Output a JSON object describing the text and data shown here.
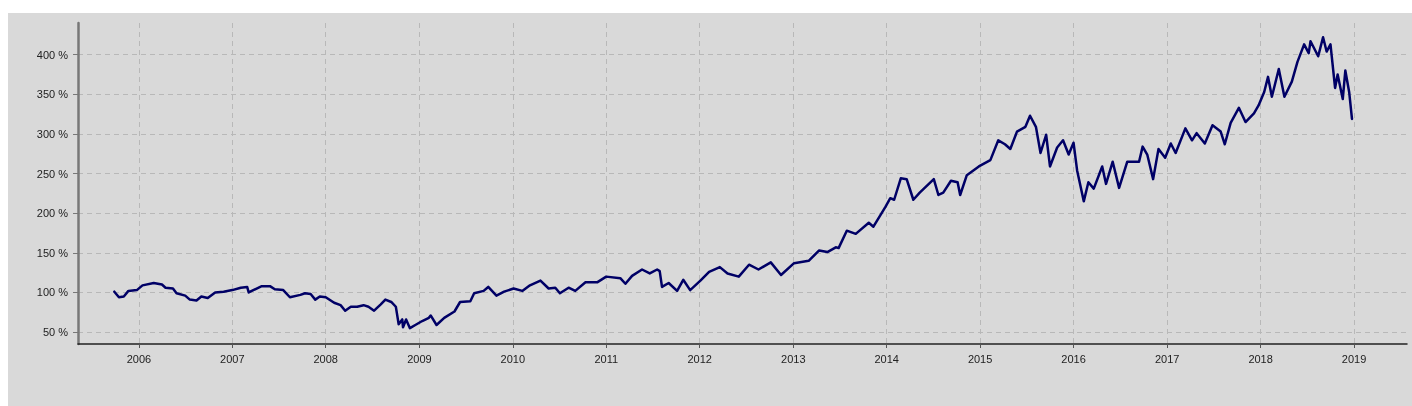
{
  "chart_data": {
    "type": "line",
    "line_style": "solid",
    "marker": "none",
    "grid": true,
    "xlim": [
      "2005-05-08",
      "2019-07-27"
    ],
    "xticks": [
      "2006",
      "2007",
      "2008",
      "2009",
      "2010",
      "2011",
      "2012",
      "2013",
      "2014",
      "2015",
      "2016",
      "2017",
      "2018",
      "2019"
    ],
    "ylim": [
      35,
      440
    ],
    "yticks": [
      {
        "value": 50,
        "label": "50 %"
      },
      {
        "value": 100,
        "label": "100 %"
      },
      {
        "value": 150,
        "label": "150 %"
      },
      {
        "value": 200,
        "label": "200 %"
      },
      {
        "value": 250,
        "label": "250 %"
      },
      {
        "value": 300,
        "label": "300 %"
      },
      {
        "value": 350,
        "label": "350 %"
      },
      {
        "value": 400,
        "label": "400 %"
      }
    ],
    "x": [
      "2005-09-27",
      "2005-10-15",
      "2005-11-03",
      "2005-11-21",
      "2005-12-24",
      "2006-01-15",
      "2006-02-28",
      "2006-04-01",
      "2006-04-15",
      "2006-05-14",
      "2006-05-28",
      "2006-07-01",
      "2006-07-19",
      "2006-08-14",
      "2006-09-02",
      "2006-09-27",
      "2006-10-26",
      "2006-11-28",
      "2007-01-01",
      "2007-02-03",
      "2007-02-28",
      "2007-03-06",
      "2007-03-24",
      "2007-04-26",
      "2007-05-28",
      "2007-06-16",
      "2007-07-19",
      "2007-08-14",
      "2007-09-24",
      "2007-10-12",
      "2007-11-03",
      "2007-11-21",
      "2007-12-09",
      "2008-01-01",
      "2008-02-03",
      "2008-02-28",
      "2008-03-17",
      "2008-04-08",
      "2008-05-03",
      "2008-05-28",
      "2008-06-16",
      "2008-07-08",
      "2008-08-03",
      "2008-08-21",
      "2008-09-13",
      "2008-10-01",
      "2008-10-05",
      "2008-10-12",
      "2008-10-26",
      "2008-10-29",
      "2008-11-10",
      "2008-11-25",
      "2008-12-16",
      "2009-01-12",
      "2009-02-07",
      "2009-02-14",
      "2009-03-09",
      "2009-04-08",
      "2009-05-18",
      "2009-06-09",
      "2009-07-19",
      "2009-08-03",
      "2009-09-09",
      "2009-09-27",
      "2009-10-29",
      "2009-11-28",
      "2010-01-04",
      "2010-02-07",
      "2010-03-09",
      "2010-04-19",
      "2010-05-21",
      "2010-06-16",
      "2010-07-04",
      "2010-08-07",
      "2010-09-02",
      "2010-10-12",
      "2010-11-28",
      "2011-01-01",
      "2011-02-25",
      "2011-03-17",
      "2011-04-12",
      "2011-05-21",
      "2011-06-20",
      "2011-07-19",
      "2011-07-29",
      "2011-08-07",
      "2011-09-02",
      "2011-10-05",
      "2011-10-29",
      "2011-11-25",
      "2012-01-04",
      "2012-02-07",
      "2012-03-20",
      "2012-04-19",
      "2012-06-02",
      "2012-07-12",
      "2012-08-18",
      "2012-10-05",
      "2012-11-14",
      "2013-01-04",
      "2013-03-02",
      "2013-04-12",
      "2013-05-14",
      "2013-06-16",
      "2013-06-27",
      "2013-07-29",
      "2013-09-02",
      "2013-10-23",
      "2013-11-10",
      "2013-12-27",
      "2014-01-15",
      "2014-01-30",
      "2014-02-25",
      "2014-03-20",
      "2014-04-15",
      "2014-05-10",
      "2014-07-04",
      "2014-07-22",
      "2014-08-10",
      "2014-09-09",
      "2014-10-05",
      "2014-10-15",
      "2014-11-10",
      "2014-12-27",
      "2015-02-10",
      "2015-03-13",
      "2015-04-08",
      "2015-04-29",
      "2015-05-25",
      "2015-06-27",
      "2015-07-15",
      "2015-08-07",
      "2015-08-25",
      "2015-09-16",
      "2015-10-01",
      "2015-10-29",
      "2015-11-21",
      "2015-12-13",
      "2016-01-01",
      "2016-01-15",
      "2016-02-10",
      "2016-02-28",
      "2016-03-20",
      "2016-04-22",
      "2016-05-07",
      "2016-06-02",
      "2016-06-27",
      "2016-07-29",
      "2016-09-13",
      "2016-09-27",
      "2016-10-15",
      "2016-11-07",
      "2016-11-28",
      "2016-12-24",
      "2017-01-15",
      "2017-02-03",
      "2017-03-13",
      "2017-04-08",
      "2017-04-26",
      "2017-05-28",
      "2017-06-27",
      "2017-07-29",
      "2017-08-14",
      "2017-09-06",
      "2017-10-08",
      "2017-11-03",
      "2017-12-06",
      "2017-12-24",
      "2018-01-15",
      "2018-01-30",
      "2018-02-14",
      "2018-03-13",
      "2018-04-04",
      "2018-05-03",
      "2018-05-25",
      "2018-06-20",
      "2018-07-08",
      "2018-07-15",
      "2018-08-14",
      "2018-09-02",
      "2018-09-16",
      "2018-10-01",
      "2018-10-19",
      "2018-10-29",
      "2018-11-18",
      "2018-11-28",
      "2018-12-13",
      "2018-12-24"
    ],
    "series": [
      {
        "color": "#000066",
        "values": [
          101,
          94,
          95,
          102,
          103,
          109,
          112,
          110,
          106,
          105,
          99,
          96,
          91,
          90,
          95,
          93,
          100,
          101,
          103,
          106,
          107,
          100,
          103,
          108,
          108,
          104,
          103,
          94,
          97,
          99,
          98,
          91,
          95,
          94,
          87,
          84,
          77,
          82,
          82,
          84,
          82,
          77,
          85,
          91,
          88,
          82,
          74,
          60,
          66,
          56,
          66,
          55,
          59,
          64,
          68,
          71,
          59,
          68,
          76,
          88,
          89,
          99,
          102,
          107,
          96,
          101,
          105,
          102,
          109,
          115,
          105,
          106,
          99,
          106,
          102,
          113,
          113,
          120,
          118,
          111,
          121,
          129,
          124,
          129,
          127,
          107,
          112,
          102,
          116,
          103,
          115,
          126,
          132,
          124,
          120,
          135,
          129,
          138,
          122,
          137,
          140,
          153,
          151,
          157,
          156,
          178,
          174,
          188,
          183,
          208,
          219,
          217,
          244,
          243,
          217,
          226,
          243,
          223,
          226,
          241,
          239,
          223,
          248,
          259,
          267,
          292,
          287,
          281,
          303,
          309,
          323,
          309,
          276,
          299,
          259,
          283,
          292,
          274,
          289,
          254,
          215,
          239,
          231,
          259,
          237,
          265,
          232,
          265,
          265,
          284,
          274,
          243,
          281,
          270,
          288,
          276,
          307,
          292,
          301,
          288,
          311,
          303,
          287,
          314,
          333,
          315,
          326,
          336,
          353,
          372,
          347,
          382,
          347,
          366,
          391,
          413,
          402,
          417,
          398,
          422,
          404,
          413,
          358,
          375,
          344,
          380,
          353,
          319
        ]
      }
    ]
  }
}
